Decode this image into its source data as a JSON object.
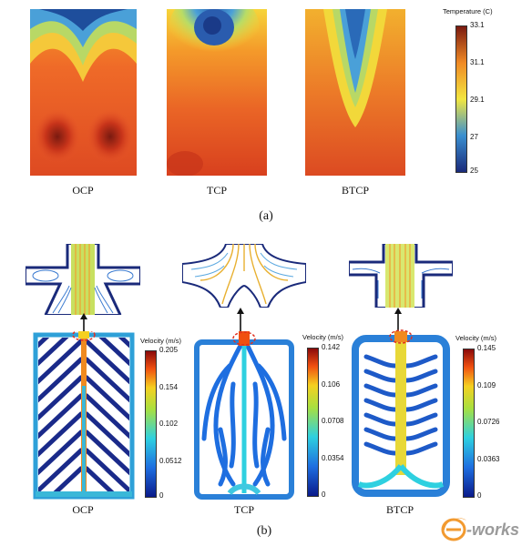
{
  "panel_a": {
    "label": "(a)",
    "plots": [
      "OCP",
      "TCP",
      "BTCP"
    ],
    "colorbar": {
      "title": "Temperature (C)",
      "ticks": [
        "33.1",
        "31.1",
        "29.1",
        "27",
        "25"
      ]
    }
  },
  "panel_b": {
    "label": "(b)",
    "plots": [
      {
        "caption": "OCP",
        "colorbar_title": "Velocity (m/s)",
        "ticks": [
          "0.205",
          "0.154",
          "0.102",
          "0.0512",
          "0"
        ]
      },
      {
        "caption": "TCP",
        "colorbar_title": "Velocity (m/s)",
        "ticks": [
          "0.142",
          "0.106",
          "0.0708",
          "0.0354",
          "0"
        ]
      },
      {
        "caption": "BTCP",
        "colorbar_title": "Velocity (m/s)",
        "ticks": [
          "0.145",
          "0.109",
          "0.0726",
          "0.0363",
          "0"
        ]
      }
    ]
  },
  "watermark": {
    "text": "e-works"
  }
}
